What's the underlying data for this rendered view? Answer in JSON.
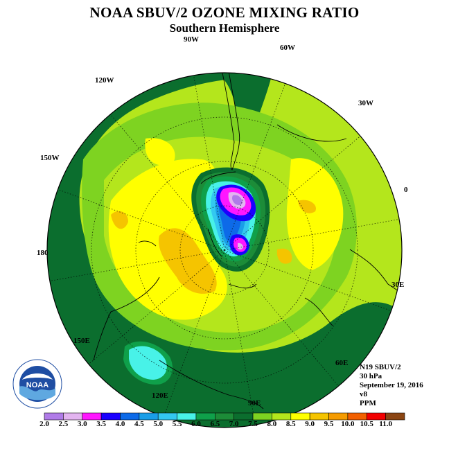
{
  "title": "NOAA SBUV/2 OZONE MIXING RATIO",
  "subtitle": "Southern Hemisphere",
  "longitude_labels": [
    "90W",
    "60W",
    "30W",
    "0",
    "30E",
    "60E",
    "90E",
    "120E",
    "150E",
    "180",
    "150W",
    "120W"
  ],
  "info": {
    "satellite": "N19 SBUV/2",
    "level": "30 hPa",
    "date": "September 19, 2016",
    "version": "v8",
    "units": "PPM"
  },
  "logo_text": "NOAA",
  "colorbar": {
    "levels": [
      "2.0",
      "2.5",
      "3.0",
      "3.5",
      "4.0",
      "4.5",
      "5.0",
      "5.5",
      "6.0",
      "6.5",
      "7.0",
      "7.5",
      "8.0",
      "8.5",
      "9.0",
      "9.5",
      "10.0",
      "10.5",
      "11.0"
    ],
    "colors": [
      "#b07be8",
      "#e3b4f0",
      "#ff17ff",
      "#1a00ff",
      "#0d6ae8",
      "#1a9ee8",
      "#33c8f0",
      "#48f2e8",
      "#0fa04a",
      "#1c8c38",
      "#0b6e2e",
      "#7ed321",
      "#b4e61c",
      "#ffff00",
      "#f5c400",
      "#f59b00",
      "#f26000",
      "#f20000",
      "#8b4513"
    ]
  }
}
